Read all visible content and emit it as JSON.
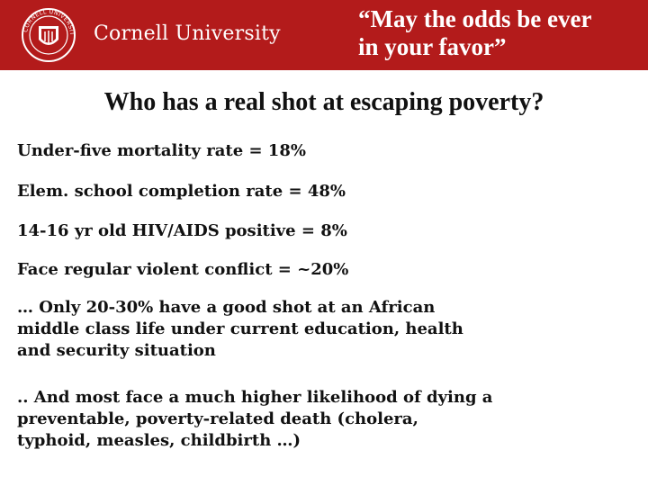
{
  "header": {
    "university_name": "Cornell University",
    "seal_text": "CORNELL UNIVERSITY",
    "quote_line_1": "“May the odds be ever",
    "quote_line_2": "in your favor”",
    "colors": {
      "banner": "#b31b1b",
      "text_on_banner": "#ffffff"
    }
  },
  "slide": {
    "title": "Who has a real shot at escaping poverty?",
    "stats": [
      "Under-five mortality rate = 18%",
      "Elem. school completion rate = 48%",
      "14-16 yr old HIV/AIDS positive = 8%",
      "Face regular violent conflict = ~20%"
    ],
    "paragraph_1": [
      "… Only 20-30% have a good shot at an African",
      "middle class life under current education, health",
      "and security situation"
    ],
    "paragraph_2": [
      ".. And most face a much higher likelihood of dying a",
      "preventable, poverty-related death (cholera,",
      "typhoid, measles, childbirth …)"
    ]
  }
}
